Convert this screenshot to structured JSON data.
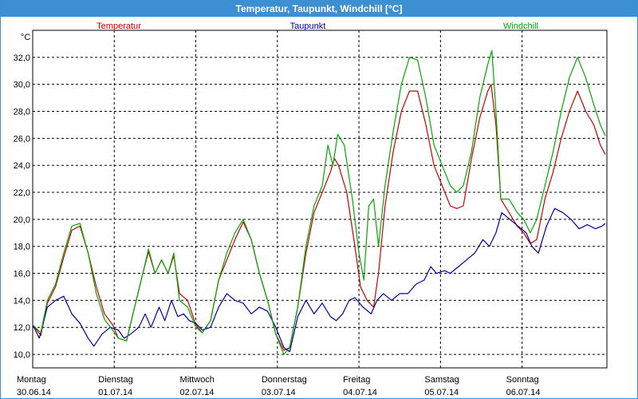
{
  "window": {
    "title": "Temperatur, Taupunkt, Windchill [°C]"
  },
  "chart_data": {
    "type": "line",
    "title": "Temperatur, Taupunkt, Windchill [°C]",
    "ylabel": "°C",
    "ylim": [
      9,
      34
    ],
    "yticks": [
      10,
      12,
      14,
      16,
      18,
      20,
      22,
      24,
      26,
      28,
      30,
      32
    ],
    "ytick_labels": [
      "10,0",
      "12,0",
      "14,0",
      "16,0",
      "18,0",
      "20,0",
      "22,0",
      "24,0",
      "26,0",
      "28,0",
      "30,0",
      "32,0"
    ],
    "xlim": [
      0,
      7.04
    ],
    "x_unit": "days from 30.06.14 00:00",
    "day_labels": [
      {
        "weekday": "Montag",
        "date": "30.06.14"
      },
      {
        "weekday": "Dienstag",
        "date": "01.07.14"
      },
      {
        "weekday": "Mittwoch",
        "date": "02.07.14"
      },
      {
        "weekday": "Donnerstag",
        "date": "03.07.14"
      },
      {
        "weekday": "Freitag",
        "date": "04.07.14"
      },
      {
        "weekday": "Samstag",
        "date": "05.07.14"
      },
      {
        "weekday": "Sonntag",
        "date": "06.07.14"
      }
    ],
    "grid": true,
    "legend_position": "top",
    "series": [
      {
        "name": "Temperatur",
        "color": "#cc0000",
        "points": [
          [
            0.0,
            12.2
          ],
          [
            0.1,
            11.4
          ],
          [
            0.18,
            13.8
          ],
          [
            0.28,
            15.0
          ],
          [
            0.38,
            17.2
          ],
          [
            0.48,
            19.2
          ],
          [
            0.58,
            19.5
          ],
          [
            0.68,
            17.5
          ],
          [
            0.78,
            15.0
          ],
          [
            0.88,
            13.0
          ],
          [
            0.98,
            12.2
          ],
          [
            1.05,
            11.2
          ],
          [
            1.15,
            11.0
          ],
          [
            1.25,
            13.5
          ],
          [
            1.35,
            16.0
          ],
          [
            1.42,
            17.6
          ],
          [
            1.5,
            16.0
          ],
          [
            1.58,
            17.0
          ],
          [
            1.66,
            16.0
          ],
          [
            1.73,
            17.3
          ],
          [
            1.8,
            14.5
          ],
          [
            1.9,
            14.0
          ],
          [
            2.0,
            12.2
          ],
          [
            2.08,
            11.6
          ],
          [
            2.18,
            12.5
          ],
          [
            2.28,
            15.5
          ],
          [
            2.38,
            17.0
          ],
          [
            2.48,
            18.5
          ],
          [
            2.58,
            19.8
          ],
          [
            2.68,
            18.5
          ],
          [
            2.78,
            16.0
          ],
          [
            2.88,
            14.0
          ],
          [
            2.98,
            11.5
          ],
          [
            3.08,
            10.3
          ],
          [
            3.15,
            10.5
          ],
          [
            3.25,
            13.5
          ],
          [
            3.35,
            17.5
          ],
          [
            3.45,
            20.5
          ],
          [
            3.55,
            22.0
          ],
          [
            3.65,
            23.5
          ],
          [
            3.7,
            24.5
          ],
          [
            3.75,
            24.0
          ],
          [
            3.85,
            22.0
          ],
          [
            3.95,
            18.0
          ],
          [
            4.02,
            15.0
          ],
          [
            4.1,
            14.0
          ],
          [
            4.18,
            13.5
          ],
          [
            4.24,
            16.0
          ],
          [
            4.32,
            21.0
          ],
          [
            4.42,
            25.0
          ],
          [
            4.52,
            28.0
          ],
          [
            4.62,
            29.5
          ],
          [
            4.72,
            29.5
          ],
          [
            4.82,
            27.0
          ],
          [
            4.92,
            24.0
          ],
          [
            5.02,
            22.5
          ],
          [
            5.12,
            21.0
          ],
          [
            5.2,
            20.8
          ],
          [
            5.28,
            21.0
          ],
          [
            5.38,
            24.5
          ],
          [
            5.48,
            27.5
          ],
          [
            5.58,
            29.5
          ],
          [
            5.62,
            30.0
          ],
          [
            5.68,
            27.0
          ],
          [
            5.74,
            21.5
          ],
          [
            5.84,
            20.5
          ],
          [
            5.94,
            19.5
          ],
          [
            6.02,
            19.0
          ],
          [
            6.1,
            18.2
          ],
          [
            6.18,
            18.5
          ],
          [
            6.28,
            21.5
          ],
          [
            6.38,
            23.5
          ],
          [
            6.48,
            26.0
          ],
          [
            6.58,
            28.0
          ],
          [
            6.68,
            29.5
          ],
          [
            6.78,
            28.0
          ],
          [
            6.88,
            27.0
          ],
          [
            6.96,
            25.5
          ],
          [
            7.02,
            24.8
          ]
        ]
      },
      {
        "name": "Taupunkt",
        "color": "#0000aa",
        "points": [
          [
            0.0,
            12.2
          ],
          [
            0.08,
            11.2
          ],
          [
            0.18,
            13.5
          ],
          [
            0.28,
            14.0
          ],
          [
            0.38,
            14.3
          ],
          [
            0.48,
            13.0
          ],
          [
            0.58,
            12.3
          ],
          [
            0.68,
            11.2
          ],
          [
            0.75,
            10.6
          ],
          [
            0.85,
            11.5
          ],
          [
            0.95,
            12.0
          ],
          [
            1.05,
            11.8
          ],
          [
            1.12,
            11.2
          ],
          [
            1.2,
            11.5
          ],
          [
            1.3,
            12.0
          ],
          [
            1.38,
            13.0
          ],
          [
            1.45,
            12.0
          ],
          [
            1.55,
            13.5
          ],
          [
            1.62,
            12.5
          ],
          [
            1.7,
            14.0
          ],
          [
            1.78,
            12.8
          ],
          [
            1.85,
            13.0
          ],
          [
            1.92,
            12.5
          ],
          [
            2.0,
            12.3
          ],
          [
            2.08,
            11.8
          ],
          [
            2.18,
            12.0
          ],
          [
            2.28,
            13.5
          ],
          [
            2.38,
            14.5
          ],
          [
            2.48,
            14.0
          ],
          [
            2.58,
            13.8
          ],
          [
            2.68,
            13.0
          ],
          [
            2.78,
            13.5
          ],
          [
            2.88,
            13.2
          ],
          [
            2.98,
            12.0
          ],
          [
            3.08,
            10.5
          ],
          [
            3.15,
            10.2
          ],
          [
            3.25,
            12.8
          ],
          [
            3.35,
            14.0
          ],
          [
            3.45,
            13.0
          ],
          [
            3.55,
            13.8
          ],
          [
            3.65,
            12.8
          ],
          [
            3.72,
            12.5
          ],
          [
            3.8,
            13.0
          ],
          [
            3.88,
            14.0
          ],
          [
            3.95,
            14.2
          ],
          [
            4.05,
            13.5
          ],
          [
            4.15,
            13.0
          ],
          [
            4.22,
            14.0
          ],
          [
            4.3,
            14.5
          ],
          [
            4.4,
            14.0
          ],
          [
            4.5,
            14.5
          ],
          [
            4.6,
            14.5
          ],
          [
            4.7,
            15.2
          ],
          [
            4.8,
            15.5
          ],
          [
            4.88,
            16.5
          ],
          [
            4.95,
            16.0
          ],
          [
            5.05,
            16.2
          ],
          [
            5.12,
            16.0
          ],
          [
            5.22,
            16.5
          ],
          [
            5.32,
            17.0
          ],
          [
            5.42,
            17.5
          ],
          [
            5.52,
            18.5
          ],
          [
            5.6,
            18.0
          ],
          [
            5.68,
            19.0
          ],
          [
            5.75,
            20.5
          ],
          [
            5.85,
            20.0
          ],
          [
            5.95,
            19.5
          ],
          [
            6.05,
            19.0
          ],
          [
            6.12,
            18.0
          ],
          [
            6.2,
            17.5
          ],
          [
            6.3,
            19.5
          ],
          [
            6.4,
            20.8
          ],
          [
            6.5,
            20.5
          ],
          [
            6.6,
            20.0
          ],
          [
            6.7,
            19.3
          ],
          [
            6.8,
            19.6
          ],
          [
            6.9,
            19.3
          ],
          [
            6.98,
            19.5
          ],
          [
            7.02,
            19.7
          ]
        ]
      },
      {
        "name": "Windchill",
        "color": "#00aa00",
        "points": [
          [
            0.0,
            12.2
          ],
          [
            0.1,
            11.6
          ],
          [
            0.18,
            14.0
          ],
          [
            0.28,
            15.2
          ],
          [
            0.38,
            17.5
          ],
          [
            0.48,
            19.5
          ],
          [
            0.58,
            19.7
          ],
          [
            0.68,
            17.5
          ],
          [
            0.78,
            14.5
          ],
          [
            0.88,
            12.6
          ],
          [
            0.98,
            11.8
          ],
          [
            1.05,
            11.2
          ],
          [
            1.15,
            11.0
          ],
          [
            1.25,
            13.5
          ],
          [
            1.35,
            16.0
          ],
          [
            1.42,
            17.8
          ],
          [
            1.5,
            16.0
          ],
          [
            1.58,
            17.0
          ],
          [
            1.66,
            16.0
          ],
          [
            1.73,
            17.5
          ],
          [
            1.8,
            14.0
          ],
          [
            1.9,
            13.5
          ],
          [
            2.0,
            12.0
          ],
          [
            2.08,
            11.6
          ],
          [
            2.18,
            12.5
          ],
          [
            2.28,
            15.5
          ],
          [
            2.38,
            17.5
          ],
          [
            2.48,
            19.0
          ],
          [
            2.58,
            20.0
          ],
          [
            2.68,
            18.5
          ],
          [
            2.78,
            16.0
          ],
          [
            2.88,
            14.0
          ],
          [
            2.98,
            11.5
          ],
          [
            3.08,
            10.0
          ],
          [
            3.15,
            10.5
          ],
          [
            3.25,
            13.5
          ],
          [
            3.35,
            18.0
          ],
          [
            3.45,
            21.0
          ],
          [
            3.55,
            22.5
          ],
          [
            3.62,
            25.5
          ],
          [
            3.68,
            24.0
          ],
          [
            3.74,
            26.3
          ],
          [
            3.82,
            25.5
          ],
          [
            3.92,
            21.5
          ],
          [
            4.0,
            17.5
          ],
          [
            4.06,
            15.5
          ],
          [
            4.12,
            21.0
          ],
          [
            4.18,
            21.5
          ],
          [
            4.24,
            18.0
          ],
          [
            4.32,
            22.5
          ],
          [
            4.42,
            26.5
          ],
          [
            4.52,
            30.0
          ],
          [
            4.62,
            32.0
          ],
          [
            4.72,
            31.8
          ],
          [
            4.82,
            29.0
          ],
          [
            4.92,
            25.5
          ],
          [
            5.02,
            24.0
          ],
          [
            5.12,
            22.5
          ],
          [
            5.2,
            22.0
          ],
          [
            5.28,
            22.5
          ],
          [
            5.38,
            25.0
          ],
          [
            5.48,
            29.0
          ],
          [
            5.58,
            31.5
          ],
          [
            5.63,
            32.5
          ],
          [
            5.68,
            28.0
          ],
          [
            5.74,
            21.5
          ],
          [
            5.84,
            21.5
          ],
          [
            5.94,
            20.5
          ],
          [
            6.02,
            20.0
          ],
          [
            6.1,
            19.0
          ],
          [
            6.18,
            20.0
          ],
          [
            6.28,
            22.5
          ],
          [
            6.38,
            25.0
          ],
          [
            6.48,
            28.0
          ],
          [
            6.58,
            30.5
          ],
          [
            6.68,
            32.0
          ],
          [
            6.78,
            30.5
          ],
          [
            6.88,
            28.5
          ],
          [
            6.96,
            27.0
          ],
          [
            7.02,
            26.2
          ]
        ]
      }
    ]
  }
}
